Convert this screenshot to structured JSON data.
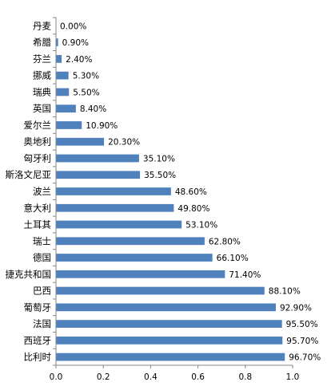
{
  "chart_data": {
    "type": "bar",
    "orientation": "horizontal",
    "categories": [
      "丹麦",
      "希腊",
      "芬兰",
      "挪威",
      "瑞典",
      "英国",
      "爱尔兰",
      "奥地利",
      "匈牙利",
      "斯洛文尼亚",
      "波兰",
      "意大利",
      "土耳其",
      "瑞士",
      "德国",
      "捷克共和国",
      "巴西",
      "葡萄牙",
      "法国",
      "西班牙",
      "比利时"
    ],
    "values": [
      0.0,
      0.009,
      0.024,
      0.053,
      0.055,
      0.084,
      0.109,
      0.203,
      0.351,
      0.355,
      0.486,
      0.498,
      0.531,
      0.628,
      0.661,
      0.714,
      0.881,
      0.929,
      0.955,
      0.957,
      0.967
    ],
    "data_labels": [
      "0.00%",
      "0.90%",
      "2.40%",
      "5.30%",
      "5.50%",
      "8.40%",
      "10.90%",
      "20.30%",
      "35.10%",
      "35.50%",
      "48.60%",
      "49.80%",
      "53.10%",
      "62.80%",
      "66.10%",
      "71.40%",
      "88.10%",
      "92.90%",
      "95.50%",
      "95.70%",
      "96.70%"
    ],
    "x_ticks": [
      "0.0",
      "0.2",
      "0.4",
      "0.6",
      "0.8",
      "1.0"
    ],
    "xlim": [
      0,
      1.0
    ],
    "title": "",
    "xlabel": "",
    "ylabel": "",
    "grid": false,
    "legend": "none",
    "bar_color": "#4f81bd",
    "axis_color": "#868686"
  }
}
